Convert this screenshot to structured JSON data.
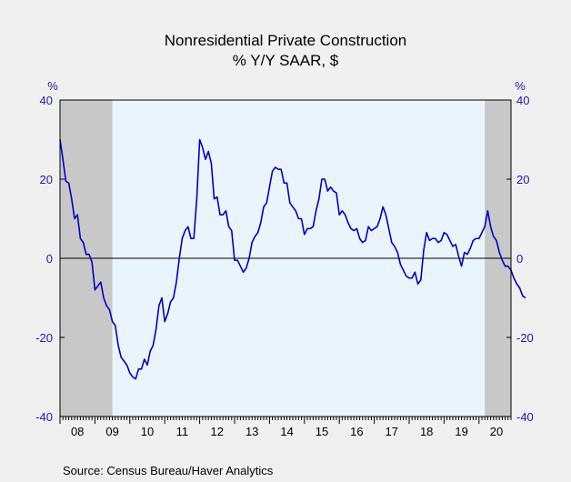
{
  "chart_data": {
    "type": "line",
    "title": "Nonresidential Private Construction",
    "subtitle": "% Y/Y   SAAR, $",
    "ylabel_left": "%",
    "ylabel_right": "%",
    "ylim": [
      -40,
      40
    ],
    "yticks": [
      40,
      20,
      0,
      -20,
      -40
    ],
    "x_range": [
      2008.0,
      2020.917
    ],
    "xtick_labels": [
      "08",
      "09",
      "10",
      "11",
      "12",
      "13",
      "14",
      "15",
      "16",
      "17",
      "18",
      "19",
      "20"
    ],
    "recessions": [
      [
        2008.0,
        2009.5
      ],
      [
        2020.167,
        2020.917
      ]
    ],
    "zero_line": true,
    "line_color": "#0000c0",
    "background_color": "#eaf4fd",
    "recession_color": "#c8c8c8",
    "source": "Source:   Census Bureau/Haver Analytics",
    "series": [
      {
        "start": 2008.0,
        "step_months": 1,
        "values": [
          30,
          25,
          19.5,
          19,
          15,
          10,
          11,
          5,
          4,
          1,
          1,
          -1,
          -8,
          -7,
          -6,
          -10,
          -12,
          -13,
          -16,
          -17,
          -22,
          -25,
          -26,
          -27,
          -29,
          -30,
          -30.5,
          -28,
          -28,
          -25.5,
          -27,
          -23.5,
          -22,
          -18,
          -12,
          -10,
          -16,
          -14,
          -11,
          -10,
          -6,
          0,
          5,
          7,
          8,
          5,
          5,
          15,
          30,
          28,
          25,
          27,
          24,
          15,
          15.5,
          11,
          11,
          12,
          8,
          7,
          -0.5,
          -0.5,
          -2,
          -3.5,
          -2.5,
          0,
          4,
          5.5,
          6.5,
          9,
          13,
          14,
          18,
          22,
          23,
          22.5,
          22.5,
          19,
          19,
          14,
          13,
          12,
          10,
          10,
          6,
          7.5,
          7.5,
          8,
          12,
          15,
          20,
          20,
          17,
          18,
          17,
          16.5,
          11,
          12,
          11,
          9,
          7.5,
          7,
          7.5,
          5,
          4,
          4.5,
          8,
          7,
          7.5,
          8,
          10,
          13,
          11,
          7.5,
          4,
          3,
          1.5,
          -1.5,
          -3,
          -4.5,
          -5,
          -5,
          -3.5,
          -6.5,
          -5.5,
          2,
          6.5,
          4.5,
          5,
          5,
          4,
          4.5,
          6.5,
          6,
          4.5,
          3,
          3.5,
          0.5,
          -2,
          1.5,
          1,
          2.5,
          4.5,
          5,
          5,
          6.5,
          8,
          12,
          8,
          5.5,
          4.5,
          1.5,
          -0.5,
          -2,
          -2,
          -3,
          -5,
          -6.5,
          -7.5,
          -9.5,
          -10
        ]
      }
    ]
  }
}
